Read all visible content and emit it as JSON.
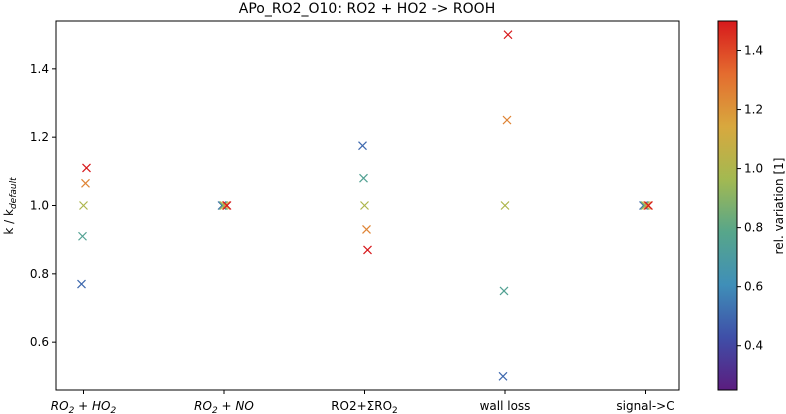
{
  "chart_data": {
    "type": "scatter",
    "title": "APo_RO2_O10: RO2 + HO2 -> ROOH",
    "ylabel_main": "k / k",
    "ylabel_sub": "default",
    "categories": [
      {
        "main": "RO",
        "sub": "2",
        "rest": " + HO",
        "sub2": "2",
        "italic": true
      },
      {
        "main": "RO",
        "sub": "2",
        "rest": " + NO",
        "sub2": "",
        "italic": true
      },
      {
        "main": "RO2+ΣRO",
        "sub": "2",
        "rest": "",
        "sub2": "",
        "italic": false
      },
      {
        "main": "wall loss",
        "sub": "",
        "rest": "",
        "sub2": "",
        "italic": false
      },
      {
        "main": "signal->C",
        "sub": "",
        "rest": "",
        "sub2": "",
        "italic": false
      }
    ],
    "ylim": [
      0.46,
      1.54
    ],
    "yticks": [
      "0.6",
      "0.8",
      "1.0",
      "1.2",
      "1.4"
    ],
    "grid": false,
    "points": [
      {
        "cat": 0,
        "y": 0.77,
        "c": 0.5
      },
      {
        "cat": 0,
        "y": 0.91,
        "c": 0.75
      },
      {
        "cat": 0,
        "y": 1.0,
        "c": 1.0
      },
      {
        "cat": 0,
        "y": 1.065,
        "c": 1.25
      },
      {
        "cat": 0,
        "y": 1.11,
        "c": 1.5
      },
      {
        "cat": 1,
        "y": 1.0,
        "c": 0.5
      },
      {
        "cat": 1,
        "y": 1.0,
        "c": 0.75
      },
      {
        "cat": 1,
        "y": 1.0,
        "c": 1.0
      },
      {
        "cat": 1,
        "y": 1.0,
        "c": 1.25
      },
      {
        "cat": 1,
        "y": 1.0,
        "c": 1.5
      },
      {
        "cat": 2,
        "y": 1.175,
        "c": 0.5
      },
      {
        "cat": 2,
        "y": 1.08,
        "c": 0.75
      },
      {
        "cat": 2,
        "y": 1.0,
        "c": 1.0
      },
      {
        "cat": 2,
        "y": 0.93,
        "c": 1.25
      },
      {
        "cat": 2,
        "y": 0.87,
        "c": 1.5
      },
      {
        "cat": 3,
        "y": 0.5,
        "c": 0.5
      },
      {
        "cat": 3,
        "y": 0.75,
        "c": 0.75
      },
      {
        "cat": 3,
        "y": 1.0,
        "c": 1.0
      },
      {
        "cat": 3,
        "y": 1.25,
        "c": 1.25
      },
      {
        "cat": 3,
        "y": 1.5,
        "c": 1.5
      },
      {
        "cat": 4,
        "y": 1.0,
        "c": 0.5
      },
      {
        "cat": 4,
        "y": 1.0,
        "c": 0.75
      },
      {
        "cat": 4,
        "y": 1.0,
        "c": 1.0
      },
      {
        "cat": 4,
        "y": 1.0,
        "c": 1.25
      },
      {
        "cat": 4,
        "y": 1.0,
        "c": 1.5
      }
    ],
    "colorbar": {
      "label": "rel. variation [1]",
      "range": [
        0.25,
        1.5
      ],
      "ticks": [
        "0.4",
        "0.6",
        "0.8",
        "1.0",
        "1.2",
        "1.4"
      ],
      "colormap_stops": [
        "#5b1d7f",
        "#3f4fa8",
        "#3f8fb8",
        "#57a68a",
        "#a3b951",
        "#d8a83e",
        "#e46c2f",
        "#d7191c"
      ]
    }
  }
}
